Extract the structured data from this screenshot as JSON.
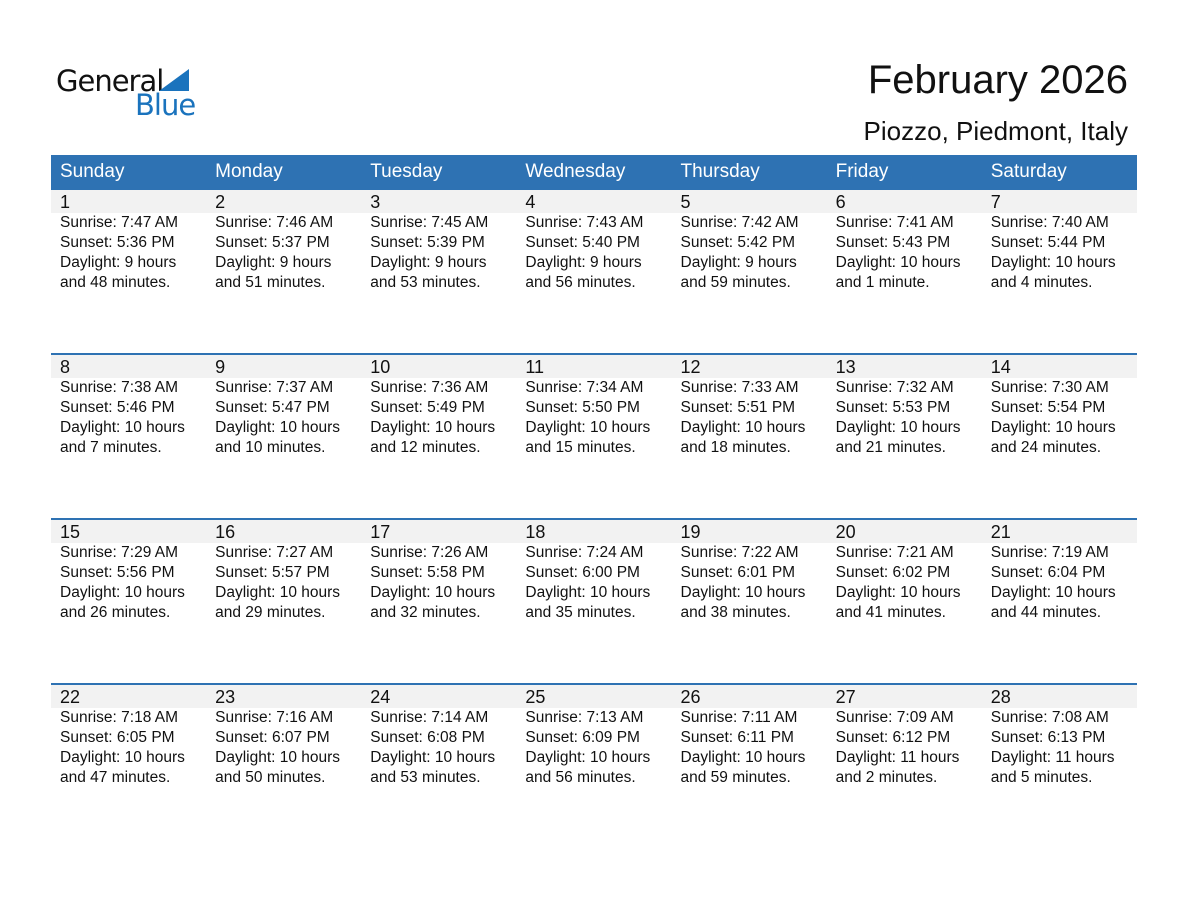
{
  "logo": {
    "line1": "General",
    "line2": "Blue"
  },
  "title": "February 2026",
  "location": "Piozzo, Piedmont, Italy",
  "colors": {
    "header": "#2e72b3",
    "logo_blue": "#1a73bd"
  },
  "weekdays": [
    "Sunday",
    "Monday",
    "Tuesday",
    "Wednesday",
    "Thursday",
    "Friday",
    "Saturday"
  ],
  "weeks": [
    [
      {
        "d": "1",
        "sr": "Sunrise: 7:47 AM",
        "ss": "Sunset: 5:36 PM",
        "dl": "Daylight: 9 hours",
        "dm": "and 48 minutes."
      },
      {
        "d": "2",
        "sr": "Sunrise: 7:46 AM",
        "ss": "Sunset: 5:37 PM",
        "dl": "Daylight: 9 hours",
        "dm": "and 51 minutes."
      },
      {
        "d": "3",
        "sr": "Sunrise: 7:45 AM",
        "ss": "Sunset: 5:39 PM",
        "dl": "Daylight: 9 hours",
        "dm": "and 53 minutes."
      },
      {
        "d": "4",
        "sr": "Sunrise: 7:43 AM",
        "ss": "Sunset: 5:40 PM",
        "dl": "Daylight: 9 hours",
        "dm": "and 56 minutes."
      },
      {
        "d": "5",
        "sr": "Sunrise: 7:42 AM",
        "ss": "Sunset: 5:42 PM",
        "dl": "Daylight: 9 hours",
        "dm": "and 59 minutes."
      },
      {
        "d": "6",
        "sr": "Sunrise: 7:41 AM",
        "ss": "Sunset: 5:43 PM",
        "dl": "Daylight: 10 hours",
        "dm": "and 1 minute."
      },
      {
        "d": "7",
        "sr": "Sunrise: 7:40 AM",
        "ss": "Sunset: 5:44 PM",
        "dl": "Daylight: 10 hours",
        "dm": "and 4 minutes."
      }
    ],
    [
      {
        "d": "8",
        "sr": "Sunrise: 7:38 AM",
        "ss": "Sunset: 5:46 PM",
        "dl": "Daylight: 10 hours",
        "dm": "and 7 minutes."
      },
      {
        "d": "9",
        "sr": "Sunrise: 7:37 AM",
        "ss": "Sunset: 5:47 PM",
        "dl": "Daylight: 10 hours",
        "dm": "and 10 minutes."
      },
      {
        "d": "10",
        "sr": "Sunrise: 7:36 AM",
        "ss": "Sunset: 5:49 PM",
        "dl": "Daylight: 10 hours",
        "dm": "and 12 minutes."
      },
      {
        "d": "11",
        "sr": "Sunrise: 7:34 AM",
        "ss": "Sunset: 5:50 PM",
        "dl": "Daylight: 10 hours",
        "dm": "and 15 minutes."
      },
      {
        "d": "12",
        "sr": "Sunrise: 7:33 AM",
        "ss": "Sunset: 5:51 PM",
        "dl": "Daylight: 10 hours",
        "dm": "and 18 minutes."
      },
      {
        "d": "13",
        "sr": "Sunrise: 7:32 AM",
        "ss": "Sunset: 5:53 PM",
        "dl": "Daylight: 10 hours",
        "dm": "and 21 minutes."
      },
      {
        "d": "14",
        "sr": "Sunrise: 7:30 AM",
        "ss": "Sunset: 5:54 PM",
        "dl": "Daylight: 10 hours",
        "dm": "and 24 minutes."
      }
    ],
    [
      {
        "d": "15",
        "sr": "Sunrise: 7:29 AM",
        "ss": "Sunset: 5:56 PM",
        "dl": "Daylight: 10 hours",
        "dm": "and 26 minutes."
      },
      {
        "d": "16",
        "sr": "Sunrise: 7:27 AM",
        "ss": "Sunset: 5:57 PM",
        "dl": "Daylight: 10 hours",
        "dm": "and 29 minutes."
      },
      {
        "d": "17",
        "sr": "Sunrise: 7:26 AM",
        "ss": "Sunset: 5:58 PM",
        "dl": "Daylight: 10 hours",
        "dm": "and 32 minutes."
      },
      {
        "d": "18",
        "sr": "Sunrise: 7:24 AM",
        "ss": "Sunset: 6:00 PM",
        "dl": "Daylight: 10 hours",
        "dm": "and 35 minutes."
      },
      {
        "d": "19",
        "sr": "Sunrise: 7:22 AM",
        "ss": "Sunset: 6:01 PM",
        "dl": "Daylight: 10 hours",
        "dm": "and 38 minutes."
      },
      {
        "d": "20",
        "sr": "Sunrise: 7:21 AM",
        "ss": "Sunset: 6:02 PM",
        "dl": "Daylight: 10 hours",
        "dm": "and 41 minutes."
      },
      {
        "d": "21",
        "sr": "Sunrise: 7:19 AM",
        "ss": "Sunset: 6:04 PM",
        "dl": "Daylight: 10 hours",
        "dm": "and 44 minutes."
      }
    ],
    [
      {
        "d": "22",
        "sr": "Sunrise: 7:18 AM",
        "ss": "Sunset: 6:05 PM",
        "dl": "Daylight: 10 hours",
        "dm": "and 47 minutes."
      },
      {
        "d": "23",
        "sr": "Sunrise: 7:16 AM",
        "ss": "Sunset: 6:07 PM",
        "dl": "Daylight: 10 hours",
        "dm": "and 50 minutes."
      },
      {
        "d": "24",
        "sr": "Sunrise: 7:14 AM",
        "ss": "Sunset: 6:08 PM",
        "dl": "Daylight: 10 hours",
        "dm": "and 53 minutes."
      },
      {
        "d": "25",
        "sr": "Sunrise: 7:13 AM",
        "ss": "Sunset: 6:09 PM",
        "dl": "Daylight: 10 hours",
        "dm": "and 56 minutes."
      },
      {
        "d": "26",
        "sr": "Sunrise: 7:11 AM",
        "ss": "Sunset: 6:11 PM",
        "dl": "Daylight: 10 hours",
        "dm": "and 59 minutes."
      },
      {
        "d": "27",
        "sr": "Sunrise: 7:09 AM",
        "ss": "Sunset: 6:12 PM",
        "dl": "Daylight: 11 hours",
        "dm": "and 2 minutes."
      },
      {
        "d": "28",
        "sr": "Sunrise: 7:08 AM",
        "ss": "Sunset: 6:13 PM",
        "dl": "Daylight: 11 hours",
        "dm": "and 5 minutes."
      }
    ]
  ]
}
